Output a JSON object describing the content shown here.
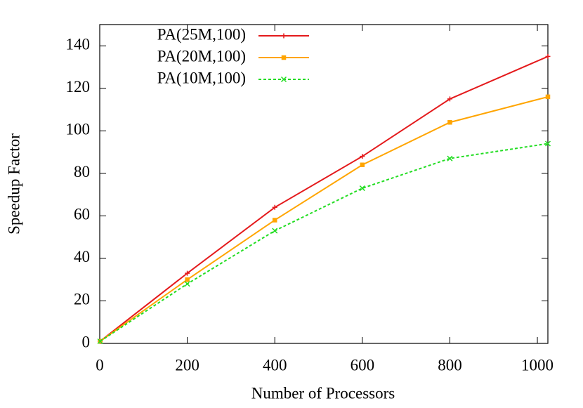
{
  "chart_data": {
    "type": "line",
    "xlabel": "Number of Processors",
    "ylabel": "Speedup Factor",
    "x": [
      1,
      200,
      400,
      600,
      800,
      1024
    ],
    "series": [
      {
        "name": "PA(25M,100)",
        "color": "#e41a1c",
        "marker": "plus",
        "dash": "solid",
        "values": [
          1,
          33,
          64,
          88,
          115,
          135
        ]
      },
      {
        "name": "PA(20M,100)",
        "color": "#ffa500",
        "marker": "square",
        "dash": "solid",
        "values": [
          1,
          30,
          58,
          84,
          104,
          116
        ]
      },
      {
        "name": "PA(10M,100)",
        "color": "#22dd22",
        "marker": "cross",
        "dash": "dashed",
        "values": [
          1,
          28,
          53,
          73,
          87,
          94
        ]
      }
    ],
    "xlim": [
      0,
      1024
    ],
    "ylim": [
      0,
      150
    ],
    "xticks": [
      0,
      200,
      400,
      600,
      800,
      1000
    ],
    "yticks": [
      0,
      20,
      40,
      60,
      80,
      100,
      120,
      140
    ],
    "legend": "upper-left"
  }
}
